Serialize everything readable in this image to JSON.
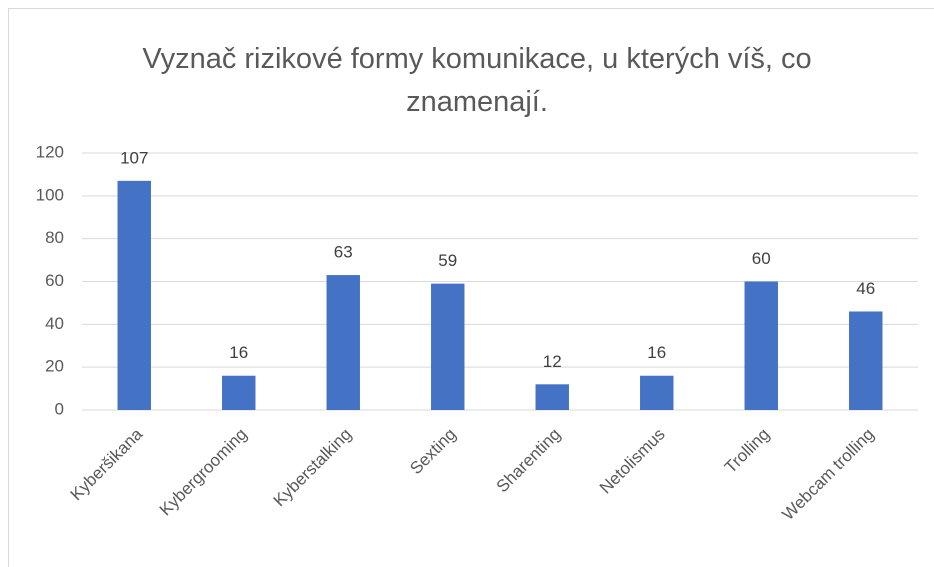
{
  "chart_data": {
    "type": "bar",
    "title": "Vyznač rizikové formy komunikace, u kterých víš, co znamenají.",
    "categories": [
      "Kyberšikana",
      "Kybergrooming",
      "Kyberstalking",
      "Sexting",
      "Sharenting",
      "Netolismus",
      "Trolling",
      "Webcam trolling"
    ],
    "values": [
      107,
      16,
      63,
      59,
      12,
      16,
      60,
      46
    ],
    "color": "#4472c4",
    "ylim": [
      0,
      120
    ],
    "yticks": [
      0,
      20,
      40,
      60,
      80,
      100,
      120
    ],
    "grid": true
  }
}
